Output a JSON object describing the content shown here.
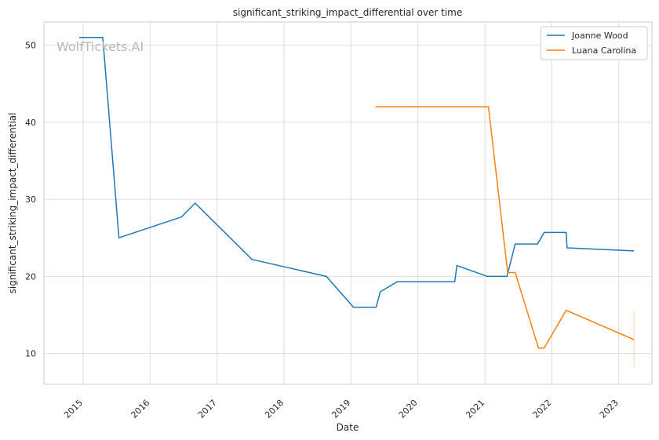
{
  "chart_data": {
    "type": "line",
    "title": "significant_striking_impact_differential over time",
    "xlabel": "Date",
    "ylabel": "significant_striking_impact_differential",
    "watermark": "WolfTickets.AI",
    "x_ticks": [
      "2015",
      "2016",
      "2017",
      "2018",
      "2019",
      "2020",
      "2021",
      "2022",
      "2023"
    ],
    "y_ticks": [
      10,
      20,
      30,
      40,
      50
    ],
    "xlim": [
      "2014-06-01",
      "2023-07-01"
    ],
    "ylim": [
      6.0,
      53.0
    ],
    "grid": true,
    "legend_position": "top-right",
    "series": [
      {
        "name": "Joanne Wood",
        "color": "#1f77b4",
        "points": [
          [
            "2014-12-10",
            51.0
          ],
          [
            "2015-04-18",
            51.0
          ],
          [
            "2015-07-15",
            25.0
          ],
          [
            "2016-06-20",
            27.7
          ],
          [
            "2016-09-03",
            29.5
          ],
          [
            "2017-07-10",
            22.2
          ],
          [
            "2018-08-20",
            20.0
          ],
          [
            "2019-01-15",
            16.0
          ],
          [
            "2019-05-18",
            16.0
          ],
          [
            "2019-06-10",
            18.0
          ],
          [
            "2019-09-10",
            19.3
          ],
          [
            "2020-07-20",
            19.3
          ],
          [
            "2020-08-01",
            21.4
          ],
          [
            "2021-01-15",
            20.0
          ],
          [
            "2021-05-01",
            20.0
          ],
          [
            "2021-06-15",
            24.2
          ],
          [
            "2021-10-15",
            24.2
          ],
          [
            "2021-11-20",
            25.7
          ],
          [
            "2022-03-20",
            25.7
          ],
          [
            "2022-03-25",
            23.7
          ],
          [
            "2023-03-25",
            23.3
          ]
        ]
      },
      {
        "name": "Luana Carolina",
        "color": "#ff7f0e",
        "points": [
          [
            "2019-05-15",
            42.0
          ],
          [
            "2021-01-20",
            42.0
          ],
          [
            "2021-05-05",
            20.5
          ],
          [
            "2021-06-15",
            20.5
          ],
          [
            "2021-10-20",
            10.7
          ],
          [
            "2021-11-20",
            10.7
          ],
          [
            "2022-03-20",
            15.6
          ],
          [
            "2023-03-25",
            11.8
          ]
        ],
        "error_bar": {
          "x": "2023-03-25",
          "low": 8.2,
          "high": 15.6
        }
      }
    ]
  }
}
